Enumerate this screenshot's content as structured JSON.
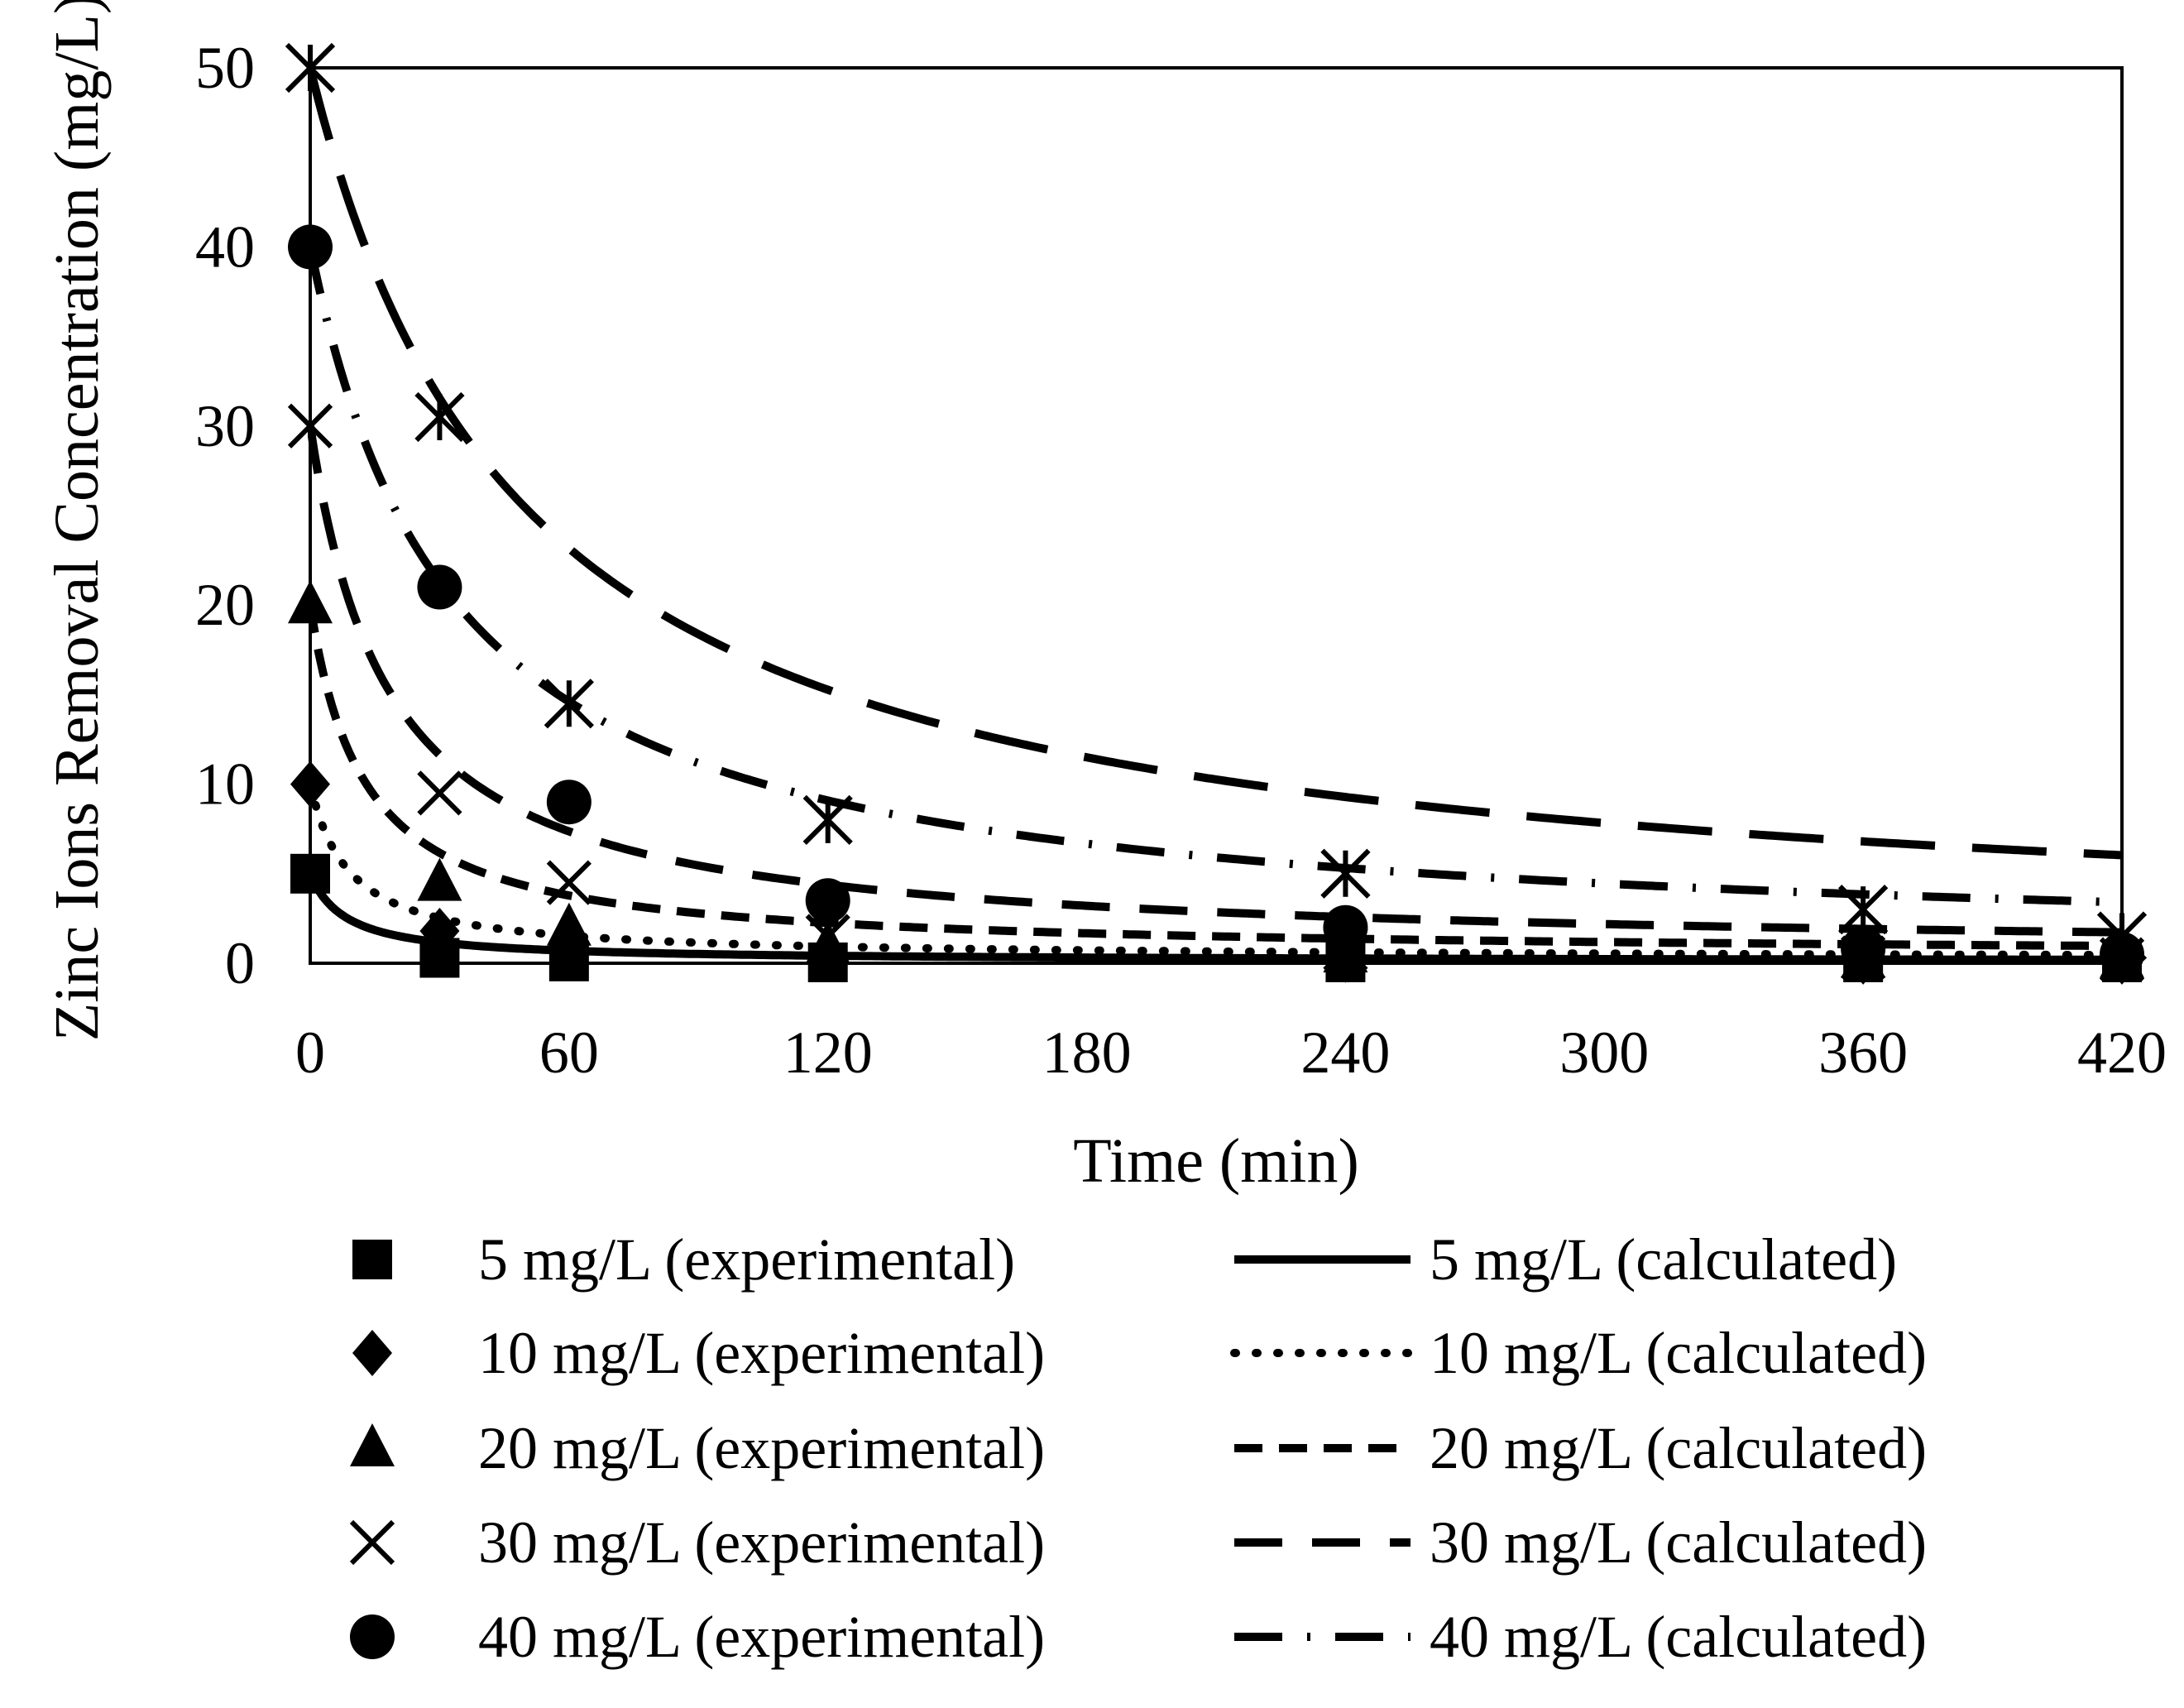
{
  "chart_data": {
    "type": "scatter",
    "title": "",
    "xlabel": "Time (min)",
    "ylabel": "Zinc Ions Removal Concentration (mg/L)",
    "xlim": [
      0,
      420
    ],
    "ylim": [
      0,
      50
    ],
    "x_ticks": [
      "0",
      "60",
      "120",
      "180",
      "240",
      "300",
      "360",
      "420"
    ],
    "x_tick_values": [
      0,
      60,
      120,
      180,
      240,
      300,
      360,
      420
    ],
    "y_ticks": [
      "0",
      "10",
      "20",
      "30",
      "40",
      "50"
    ],
    "y_tick_values": [
      0,
      10,
      20,
      30,
      40,
      50
    ],
    "grid": false,
    "legend_position": "bottom",
    "series": [
      {
        "key": "c5",
        "experimental_label": "5 mg/L (experimental)",
        "calculated_label": "5 mg/L  (calculated)",
        "marker": "square",
        "line_style": "solid",
        "x": [
          0,
          30,
          60,
          120,
          240,
          360,
          420
        ],
        "values": [
          5.0,
          0.3,
          0.1,
          0.05,
          0.05,
          0.05,
          0.05
        ],
        "calc_c0": 5,
        "calc_k": 0.12,
        "calc_floor": 0.1
      },
      {
        "key": "c10",
        "experimental_label": "10 mg/L (experimental)",
        "calculated_label": "10 mg/L  (calculated)",
        "marker": "diamond",
        "line_style": "dotted",
        "x": [
          0,
          30,
          60,
          120,
          240,
          360,
          420
        ],
        "values": [
          10.0,
          1.8,
          1.0,
          0.5,
          0.2,
          0.1,
          0.1
        ],
        "calc_c0": 10,
        "calc_k": 0.11,
        "calc_floor": 0.25
      },
      {
        "key": "c20",
        "experimental_label": "20 mg/L (experimental)",
        "calculated_label": "20 mg/L  (calculated)",
        "marker": "triangle",
        "line_style": "short-dash",
        "x": [
          0,
          30,
          60,
          120,
          240,
          360,
          420
        ],
        "values": [
          20.0,
          4.5,
          2.0,
          1.0,
          0.5,
          0.2,
          0.2
        ],
        "calc_c0": 20,
        "calc_k": 0.08,
        "calc_floor": 0.4
      },
      {
        "key": "c30",
        "experimental_label": "30 mg/L (experimental)",
        "calculated_label": "30 mg/L  (calculated)",
        "marker": "cross",
        "line_style": "medium-dash",
        "x": [
          0,
          30,
          60,
          120,
          240,
          360,
          420
        ],
        "values": [
          30.0,
          9.5,
          4.5,
          1.5,
          0.8,
          0.3,
          0.2
        ],
        "calc_c0": 30,
        "calc_k": 0.055,
        "calc_floor": 0.5
      },
      {
        "key": "c40",
        "experimental_label": "40 mg/L (experimental)",
        "calculated_label": "40 mg/L  (calculated)",
        "marker": "circle",
        "line_style": "dash-dot",
        "x": [
          0,
          30,
          60,
          120,
          240,
          360,
          420
        ],
        "values": [
          40.0,
          21.0,
          9.0,
          3.5,
          2.0,
          0.8,
          0.5
        ],
        "calc_c0": 40,
        "calc_k": 0.03,
        "calc_floor": 0.5
      },
      {
        "key": "c50",
        "experimental_label": "",
        "calculated_label": "",
        "marker": "star",
        "line_style": "long-dash",
        "x": [
          0,
          30,
          60,
          120,
          240,
          360,
          420
        ],
        "values": [
          50.0,
          30.5,
          14.5,
          8.0,
          5.0,
          3.0,
          1.5
        ],
        "calc_c0": 50,
        "calc_k": 0.02,
        "calc_floor": 0.8
      }
    ]
  }
}
